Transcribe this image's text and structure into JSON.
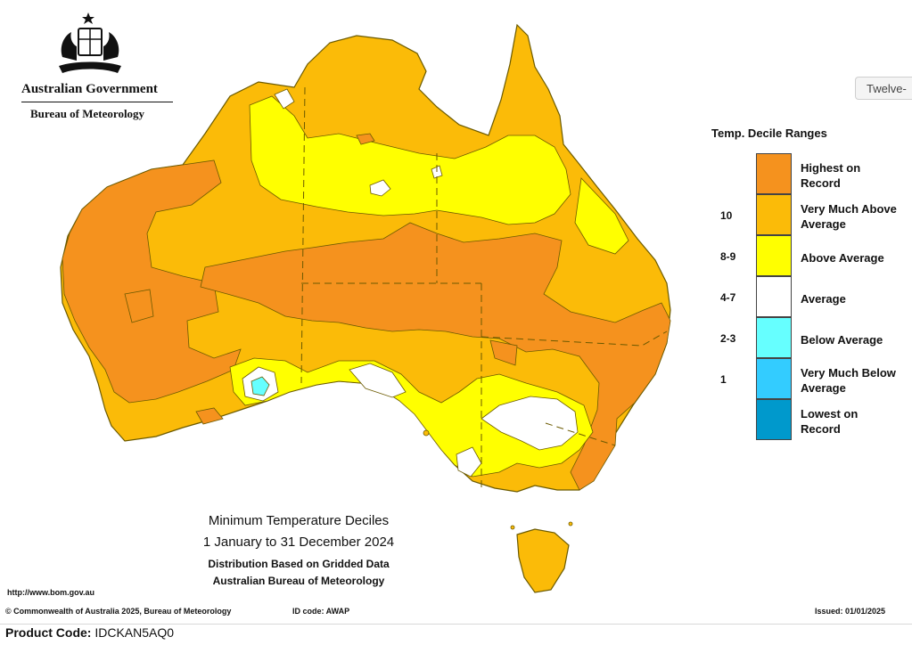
{
  "header": {
    "gov_name": "Australian Government",
    "bureau_name": "Bureau of Meteorology"
  },
  "tooltip": {
    "text": "Twelve-"
  },
  "legend": {
    "title": "Temp. Decile Ranges",
    "items": [
      {
        "label": "Highest on Record",
        "tick": "",
        "color": "#f5921e"
      },
      {
        "label": "Very Much Above Average",
        "tick": "10",
        "color": "#fbbb08"
      },
      {
        "label": "Above Average",
        "tick": "8-9",
        "color": "#ffff00"
      },
      {
        "label": "Average",
        "tick": "4-7",
        "color": "#ffffff"
      },
      {
        "label": "Below Average",
        "tick": "2-3",
        "color": "#66ffff"
      },
      {
        "label": "Very Much Below Average",
        "tick": "1",
        "color": "#33ccff"
      },
      {
        "label": "Lowest on Record",
        "tick": "",
        "color": "#0099cc"
      }
    ]
  },
  "map": {
    "title": "Minimum Temperature Deciles",
    "period": "1 January to 31 December 2024",
    "subtitle1": "Distribution Based on Gridded Data",
    "subtitle2": "Australian Bureau of Meteorology"
  },
  "footer": {
    "url": "http://www.bom.gov.au",
    "copyright": "© Commonwealth of Australia 2025, Bureau of Meteorology",
    "id_code": "ID code: AWAP",
    "issued": "Issued: 01/01/2025"
  },
  "product": {
    "label": "Product Code:",
    "code": "IDCKAN5AQ0"
  }
}
